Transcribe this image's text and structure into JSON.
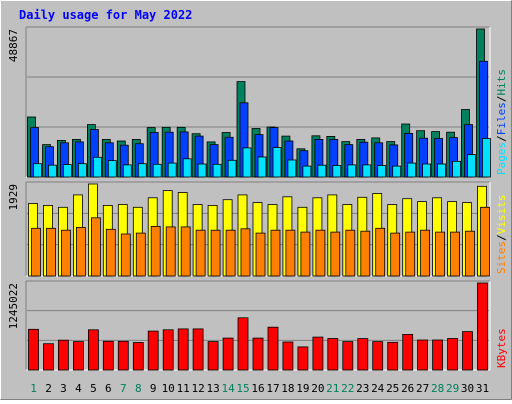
{
  "chart_data": {
    "type": "bar",
    "title": "Daily usage for May 2022",
    "colors": {
      "background": "#c0c0c0",
      "title": "#0000ff",
      "hits": "#00805c",
      "files": "#0040ff",
      "pages": "#00e0ff",
      "visits": "#ffff00",
      "sites": "#ff8000",
      "kbytes": "#ff0000",
      "weekend_label": "#00805c",
      "weekday_label": "#000000"
    },
    "days": [
      "1",
      "2",
      "3",
      "4",
      "5",
      "6",
      "7",
      "8",
      "9",
      "10",
      "11",
      "12",
      "13",
      "14",
      "15",
      "16",
      "17",
      "18",
      "19",
      "20",
      "21",
      "22",
      "23",
      "24",
      "25",
      "26",
      "27",
      "28",
      "29",
      "30",
      "31"
    ],
    "weekend_days": [
      1,
      7,
      8,
      14,
      15,
      21,
      22,
      28,
      29
    ],
    "panels": [
      {
        "id": "hits-files-pages",
        "max_label": "48867",
        "ymax": 48867,
        "legend": [
          {
            "text": "Pages",
            "color": "#00e0ff"
          },
          {
            "text": "/",
            "color": "#000000"
          },
          {
            "text": "Files",
            "color": "#0040ff"
          },
          {
            "text": "/",
            "color": "#000000"
          },
          {
            "text": "Hits",
            "color": "#00805c"
          }
        ],
        "series": [
          {
            "name": "Hits",
            "color": "#00805c",
            "values": [
              19800,
              10700,
              12100,
              12400,
              17300,
              12400,
              11900,
              12400,
              16300,
              16400,
              16400,
              14300,
              11600,
              14700,
              31500,
              16000,
              16500,
              13500,
              9300,
              13600,
              13400,
              11700,
              12400,
              12900,
              11700,
              17500,
              15300,
              15000,
              14800,
              22300,
              48867
            ]
          },
          {
            "name": "Files",
            "color": "#0040ff",
            "values": [
              16300,
              10000,
              11300,
              11600,
              15700,
              11300,
              10500,
              11000,
              14700,
              14800,
              14900,
              13500,
              10700,
              13100,
              24500,
              14000,
              16300,
              11900,
              8700,
              12400,
              12400,
              10700,
              11500,
              11300,
              10600,
              14400,
              12800,
              12700,
              13000,
              17300,
              38200
            ]
          },
          {
            "name": "Pages",
            "color": "#00e0ff",
            "values": [
              4400,
              3900,
              4100,
              4400,
              6500,
              5400,
              4000,
              4400,
              4200,
              4600,
              6000,
              4300,
              4200,
              5500,
              9600,
              6600,
              9700,
              5600,
              3600,
              3900,
              3800,
              4000,
              4000,
              3800,
              3600,
              4600,
              4300,
              4300,
              5200,
              7400,
              12700
            ]
          }
        ]
      },
      {
        "id": "visits-sites",
        "max_label": "1929",
        "ymax": 1929,
        "legend": [
          {
            "text": "Sites",
            "color": "#ff8000"
          },
          {
            "text": "/",
            "color": "#000000"
          },
          {
            "text": "Visits",
            "color": "#ffff00"
          }
        ],
        "series": [
          {
            "name": "Visits",
            "color": "#ffff00",
            "values": [
              1520,
              1480,
              1440,
              1700,
              1929,
              1480,
              1500,
              1440,
              1640,
              1790,
              1750,
              1500,
              1480,
              1600,
              1700,
              1540,
              1500,
              1660,
              1440,
              1640,
              1700,
              1500,
              1650,
              1730,
              1500,
              1620,
              1560,
              1640,
              1560,
              1540,
              1880
            ]
          },
          {
            "name": "Sites",
            "color": "#ff8000",
            "values": [
              1000,
              1000,
              960,
              1020,
              1220,
              980,
              880,
              900,
              1040,
              1030,
              1030,
              960,
              960,
              960,
              990,
              900,
              960,
              960,
              920,
              960,
              920,
              960,
              940,
              1000,
              900,
              920,
              960,
              920,
              920,
              940,
              1440
            ]
          }
        ]
      },
      {
        "id": "kbytes",
        "max_label": "1245022",
        "ymax": 1245022,
        "legend": [
          {
            "text": "KBytes",
            "color": "#ff0000"
          }
        ],
        "series": [
          {
            "name": "KBytes",
            "color": "#ff0000",
            "values": [
              582000,
              376000,
              426000,
              406000,
              575000,
              410000,
              410000,
              394000,
              556000,
              576000,
              588000,
              588000,
              406000,
              456000,
              747000,
              456000,
              613000,
              400000,
              330000,
              471000,
              451000,
              406000,
              449000,
              406000,
              396000,
              510000,
              430000,
              430000,
              451000,
              550000,
              1245022
            ]
          }
        ]
      }
    ]
  }
}
